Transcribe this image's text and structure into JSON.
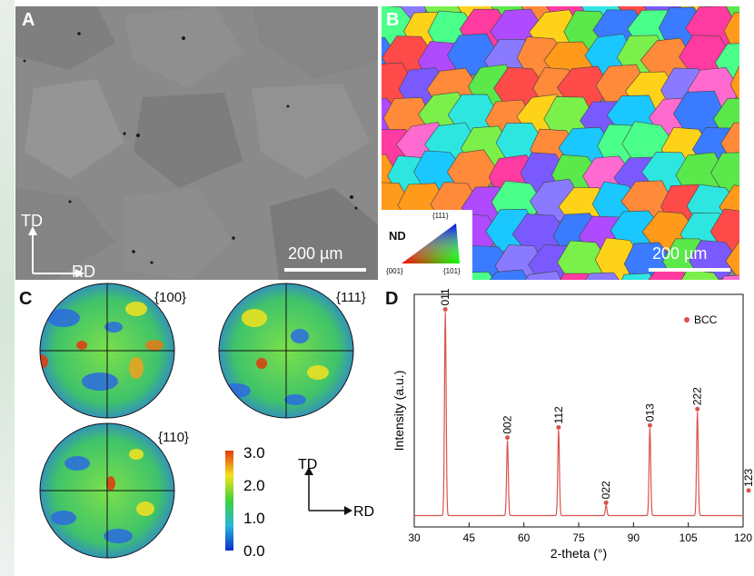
{
  "panels": {
    "a": {
      "label": "A",
      "scalebar": "200 µm",
      "axis_td": "TD",
      "axis_rd": "RD"
    },
    "b": {
      "label": "B",
      "scalebar": "200 µm",
      "legend": {
        "title": "ND",
        "corner_111": "{111}",
        "corner_001": "{001}",
        "corner_101": "{101}"
      }
    },
    "c": {
      "label": "C",
      "pole_figures": [
        "{100}",
        "{111}",
        "{110}"
      ],
      "colorbar_ticks": [
        "3.0",
        "2.0",
        "1.0",
        "0.0"
      ],
      "axis_td": "TD",
      "axis_rd": "RD"
    },
    "d": {
      "label": "D"
    }
  },
  "chart_data": {
    "type": "line",
    "xlabel": "2-theta (°)",
    "ylabel": "Intensity (a.u.)",
    "xlim": [
      30,
      120
    ],
    "xticks": [
      "30",
      "45",
      "60",
      "75",
      "90",
      "105",
      "120"
    ],
    "legend": "BCC",
    "legend_position": "top-right",
    "series_color": "#d9534f",
    "peaks": [
      {
        "x": 38.5,
        "y": 100,
        "label": "011"
      },
      {
        "x": 55.5,
        "y": 37,
        "label": "002"
      },
      {
        "x": 69.5,
        "y": 42,
        "label": "112"
      },
      {
        "x": 82.5,
        "y": 5,
        "label": "022"
      },
      {
        "x": 94.5,
        "y": 43,
        "label": "013"
      },
      {
        "x": 107.5,
        "y": 51,
        "label": "222"
      },
      {
        "x": 121.5,
        "y": 11,
        "label": "123"
      }
    ]
  }
}
